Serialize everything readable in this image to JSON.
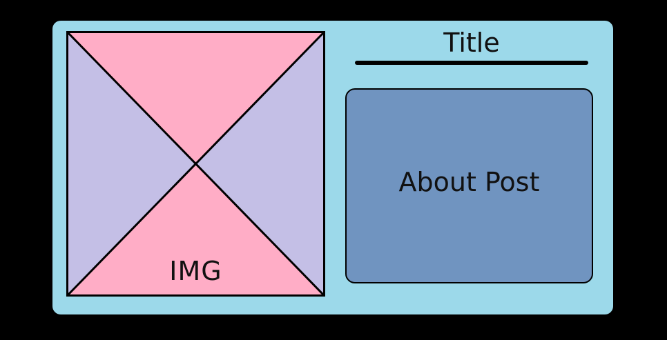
{
  "image_placeholder": {
    "label": "IMG"
  },
  "post": {
    "title": "Title",
    "about_label": "About Post"
  },
  "colors": {
    "background": "#000000",
    "card": "#9cd9ea",
    "img_top_bottom": "#ffadc6",
    "img_sides": "#c4bfe6",
    "about_box": "#7094c0"
  }
}
